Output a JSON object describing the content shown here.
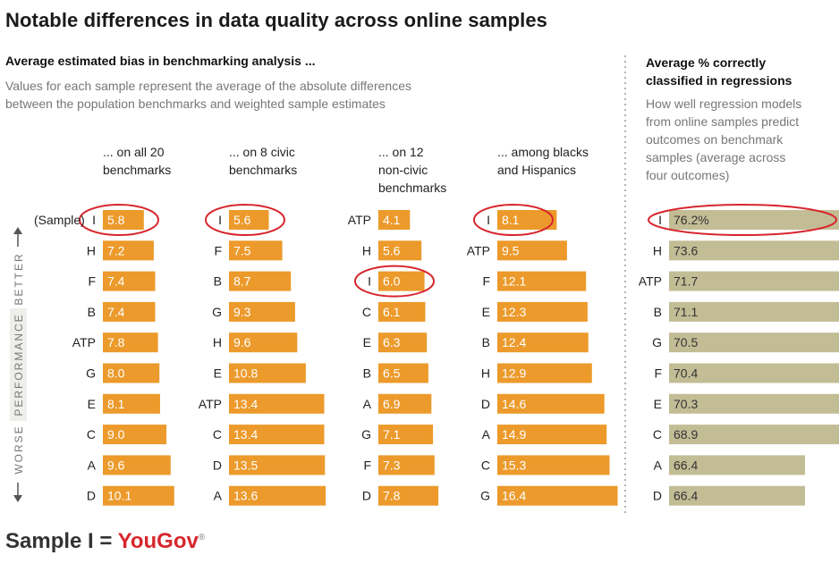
{
  "title": "Notable differences in data quality across online samples",
  "left_panel": {
    "heading": "Average estimated bias in benchmarking analysis ...",
    "description_line1": "Values for each sample represent the average of the absolute differences",
    "description_line2": "between the population benchmarks and weighted sample estimates"
  },
  "right_panel": {
    "heading_line1": "Average % correctly",
    "heading_line2": "classified in regressions",
    "description_lines": [
      "How well regression models",
      "from online samples predict",
      "outcomes on benchmark",
      "samples (average across",
      "four outcomes)"
    ]
  },
  "axis": {
    "better": "BETTER",
    "performance": "PERFORMANCE",
    "worse": "WORSE",
    "sample_label": "(Sample)"
  },
  "footer": {
    "prefix": "Sample I = ",
    "brand": "YouGov",
    "mark": "®"
  },
  "colors": {
    "bar": "#ec9a2b",
    "bar_right": "#c3bd96",
    "highlight": "#d7262d",
    "text_on_bar": "#ffffff"
  },
  "chart_data": [
    {
      "type": "bar",
      "header": [
        "... on all 20",
        "benchmarks"
      ],
      "series": [
        {
          "categories": [
            "I",
            "H",
            "F",
            "B",
            "ATP",
            "G",
            "E",
            "C",
            "A",
            "D"
          ],
          "values": [
            5.8,
            7.2,
            7.4,
            7.4,
            7.8,
            8.0,
            8.1,
            9.0,
            9.6,
            10.1
          ]
        }
      ],
      "value_labels": [
        "5.8",
        "7.2",
        "7.4",
        "7.4",
        "7.8",
        "8.0",
        "8.1",
        "9.0",
        "9.6",
        "10.1"
      ],
      "highlight": "I"
    },
    {
      "type": "bar",
      "header": [
        "... on 8 civic",
        "benchmarks"
      ],
      "series": [
        {
          "categories": [
            "I",
            "F",
            "B",
            "G",
            "H",
            "E",
            "ATP",
            "C",
            "D",
            "A"
          ],
          "values": [
            5.6,
            7.5,
            8.7,
            9.3,
            9.6,
            10.8,
            13.4,
            13.4,
            13.5,
            13.6
          ]
        }
      ],
      "value_labels": [
        "5.6",
        "7.5",
        "8.7",
        "9.3",
        "9.6",
        "10.8",
        "13.4",
        "13.4",
        "13.5",
        "13.6"
      ],
      "highlight": "I"
    },
    {
      "type": "bar",
      "header": [
        "... on 12",
        "non-civic",
        "benchmarks"
      ],
      "series": [
        {
          "categories": [
            "ATP",
            "H",
            "I",
            "C",
            "E",
            "B",
            "A",
            "G",
            "F",
            "D"
          ],
          "values": [
            4.1,
            5.6,
            6.0,
            6.1,
            6.3,
            6.5,
            6.9,
            7.1,
            7.3,
            7.8
          ]
        }
      ],
      "value_labels": [
        "4.1",
        "5.6",
        "6.0",
        "6.1",
        "6.3",
        "6.5",
        "6.9",
        "7.1",
        "7.3",
        "7.8"
      ],
      "highlight": "I"
    },
    {
      "type": "bar",
      "header": [
        "... among blacks",
        "and Hispanics"
      ],
      "series": [
        {
          "categories": [
            "I",
            "ATP",
            "F",
            "E",
            "B",
            "H",
            "D",
            "A",
            "C",
            "G"
          ],
          "values": [
            8.1,
            9.5,
            12.1,
            12.3,
            12.4,
            12.9,
            14.6,
            14.9,
            15.3,
            16.4
          ]
        }
      ],
      "value_labels": [
        "8.1",
        "9.5",
        "12.1",
        "12.3",
        "12.4",
        "12.9",
        "14.6",
        "14.9",
        "15.3",
        "16.4"
      ],
      "highlight": "I"
    },
    {
      "type": "bar",
      "series": [
        {
          "categories": [
            "I",
            "H",
            "ATP",
            "B",
            "G",
            "F",
            "E",
            "C",
            "A",
            "D"
          ],
          "values": [
            76.2,
            73.6,
            71.7,
            71.1,
            70.5,
            70.4,
            70.3,
            68.9,
            66.4,
            66.4
          ]
        }
      ],
      "value_labels": [
        "76.2%",
        "73.6",
        "71.7",
        "71.1",
        "70.5",
        "70.4",
        "70.3",
        "68.9",
        "66.4",
        "66.4"
      ],
      "highlight": "I"
    }
  ]
}
